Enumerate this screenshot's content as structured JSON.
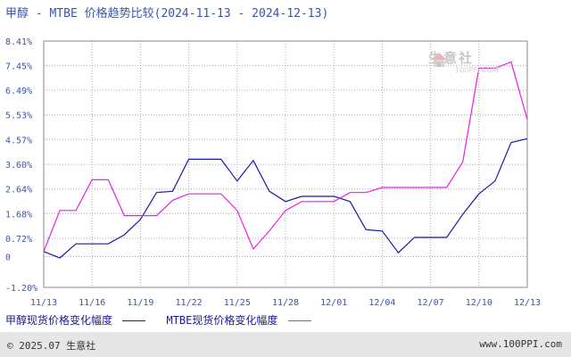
{
  "title": "甲醇 - MTBE 价格趋势比较(2024-11-13 - 2024-12-13)",
  "watermark": "生意社",
  "watermark_sub": "100PPI.COM",
  "footer": {
    "copyright": "© 2025.07 生意社",
    "site": "www.100PPI.com"
  },
  "colors": {
    "series1": "#1a1aa6",
    "series2": "#ee1ee6",
    "axis": "#3a56a8",
    "grid": "#aaaaaa"
  },
  "chart_data": {
    "type": "line",
    "title": "甲醇 - MTBE 价格趋势比较(2024-11-13 - 2024-12-13)",
    "xlabel": "",
    "ylabel": "",
    "ylim": [
      -1.2,
      8.41
    ],
    "y_ticks": [
      "8.41%",
      "7.45%",
      "6.49%",
      "5.53%",
      "4.57%",
      "3.60%",
      "2.64%",
      "1.68%",
      "0.72%",
      "0",
      "-1.20%"
    ],
    "y_tick_values": [
      8.41,
      7.45,
      6.49,
      5.53,
      4.57,
      3.6,
      2.64,
      1.68,
      0.72,
      0,
      -1.2
    ],
    "x_ticks": [
      "11/13",
      "11/16",
      "11/19",
      "11/22",
      "11/25",
      "11/28",
      "12/01",
      "12/04",
      "12/07",
      "12/10",
      "12/13"
    ],
    "x_tick_days": [
      0,
      3,
      6,
      9,
      12,
      15,
      18,
      21,
      24,
      27,
      30
    ],
    "grid": true,
    "legend_position": "bottom",
    "x_days": [
      0,
      1,
      2,
      3,
      4,
      5,
      6,
      7,
      8,
      9,
      10,
      11,
      12,
      13,
      14,
      15,
      16,
      17,
      18,
      19,
      20,
      21,
      22,
      23,
      24,
      25,
      26,
      27,
      28,
      29,
      30
    ],
    "series": [
      {
        "name": "甲醇现货价格变化幅度",
        "values": [
          0.2,
          -0.05,
          0.5,
          0.5,
          0.5,
          0.85,
          1.45,
          2.5,
          2.55,
          3.8,
          3.8,
          3.8,
          2.95,
          3.75,
          2.55,
          2.15,
          2.35,
          2.35,
          2.35,
          2.15,
          1.05,
          1.0,
          0.15,
          0.75,
          0.75,
          0.75,
          1.65,
          2.45,
          2.95,
          4.45,
          4.6
        ]
      },
      {
        "name": "MTBE现货价格变化幅度",
        "values": [
          0.2,
          1.8,
          1.8,
          3.0,
          3.0,
          1.6,
          1.6,
          1.6,
          2.2,
          2.45,
          2.45,
          2.45,
          1.8,
          0.3,
          1.0,
          1.8,
          2.15,
          2.15,
          2.15,
          2.5,
          2.5,
          2.7,
          2.7,
          2.7,
          2.7,
          2.7,
          3.7,
          7.35,
          7.35,
          7.6,
          5.35
        ]
      }
    ]
  }
}
